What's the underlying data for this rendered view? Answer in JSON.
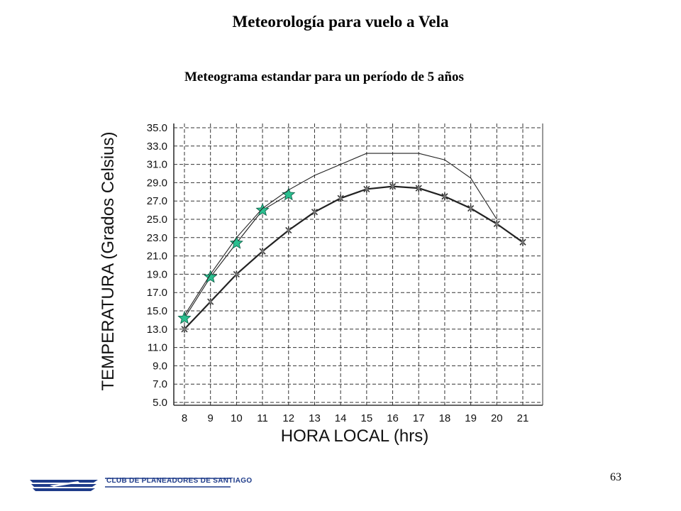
{
  "page": {
    "title": "Meteorología para vuelo a Vela",
    "subtitle": "Meteograma estandar para un período de 5 años",
    "page_number": "63",
    "footer_org": "CLUB DE PLANEADORES DE SANTIAGO"
  },
  "colors": {
    "star": "#2bbf8f",
    "line": "#222222",
    "grid": "#333333"
  },
  "chart_data": {
    "type": "line",
    "title": "",
    "xlabel": "HORA LOCAL (hrs)",
    "ylabel": "TEMPERATURA (Grados Celsius)",
    "ylim": [
      5,
      35
    ],
    "xlim": [
      8,
      21
    ],
    "grid": true,
    "x_ticks": [
      "8",
      "9",
      "10",
      "11",
      "12",
      "13",
      "14",
      "15",
      "16",
      "17",
      "18",
      "19",
      "20",
      "21"
    ],
    "y_ticks": [
      "35.0",
      "33.0",
      "31.0",
      "29.0",
      "27.0",
      "25.0",
      "23.0",
      "21.0",
      "19.0",
      "17.0",
      "15.0",
      "13.0",
      "11.0",
      "9.0",
      "7.0",
      "5.0"
    ],
    "series": [
      {
        "marker": "star",
        "x": [
          8,
          9,
          10,
          11,
          12
        ],
        "values": [
          14.2,
          18.7,
          22.4,
          26.0,
          27.7
        ]
      },
      {
        "marker": "none",
        "x": [
          8,
          9,
          10,
          11,
          12,
          13,
          14,
          15,
          16,
          17,
          18,
          19,
          20
        ],
        "values": [
          14.5,
          19.0,
          23.0,
          26.2,
          28.2,
          29.8,
          31.0,
          32.2,
          32.2,
          32.2,
          31.5,
          29.5,
          25.0
        ]
      },
      {
        "marker": "cross",
        "x": [
          8,
          9,
          10,
          11,
          12,
          13,
          14,
          15,
          16,
          17,
          18,
          19,
          20,
          21
        ],
        "values": [
          13.0,
          16.0,
          19.0,
          21.5,
          23.8,
          25.8,
          27.3,
          28.3,
          28.6,
          28.4,
          27.5,
          26.2,
          24.5,
          22.5
        ]
      }
    ]
  }
}
